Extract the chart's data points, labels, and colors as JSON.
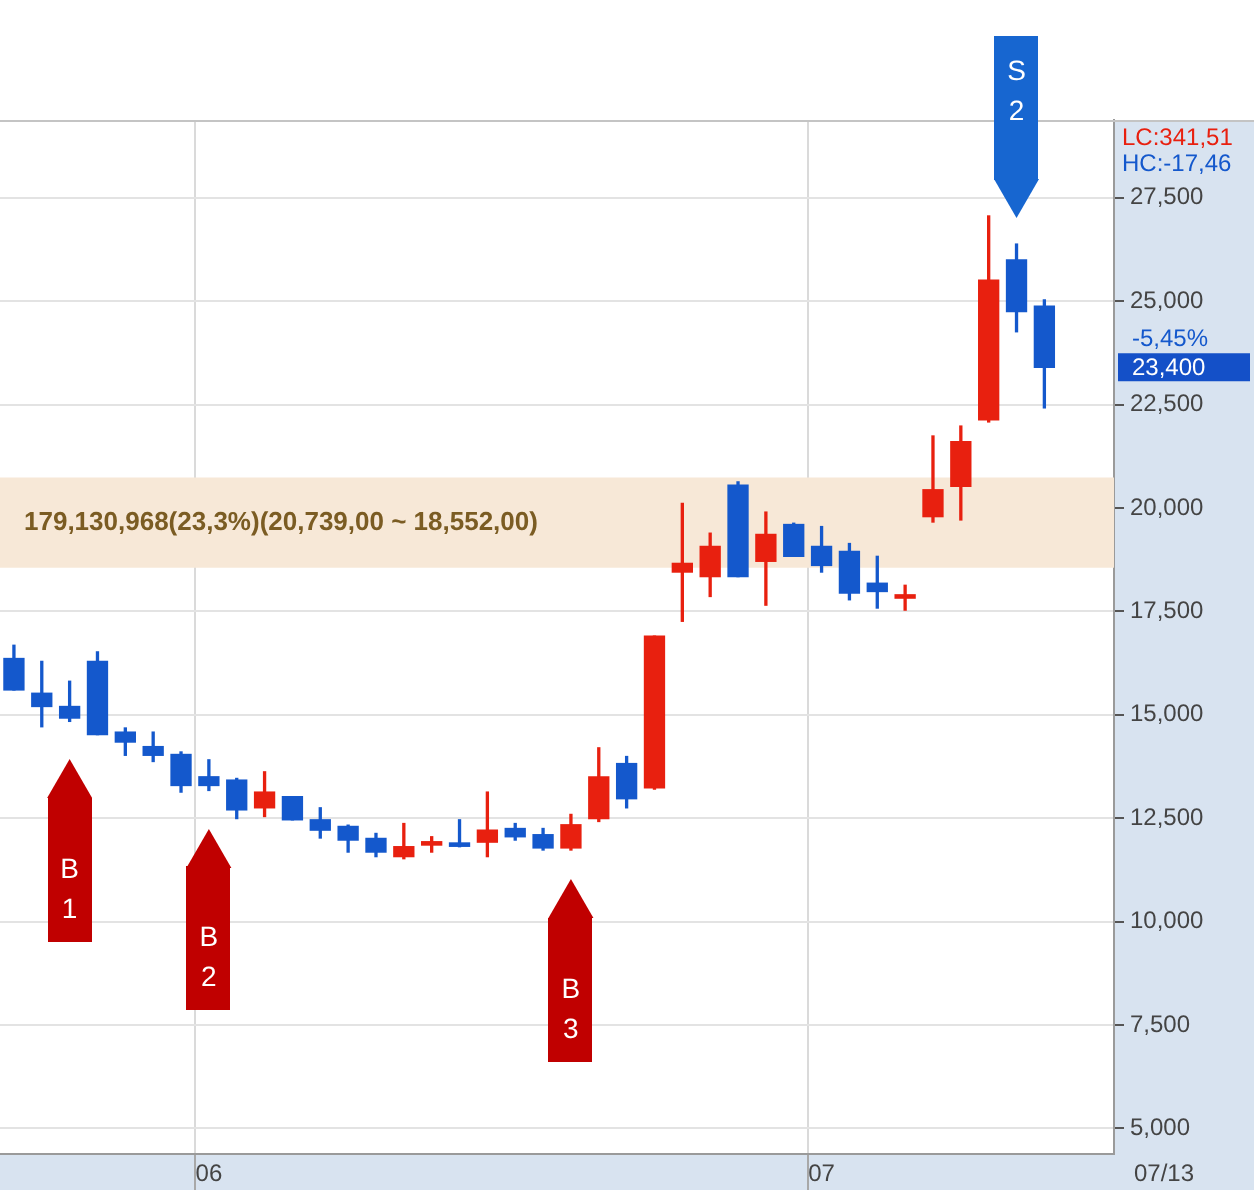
{
  "chart_data": {
    "type": "candlestick",
    "categories": [
      null,
      null,
      null,
      null,
      null,
      null,
      null,
      "06",
      null,
      null,
      null,
      null,
      null,
      null,
      null,
      null,
      null,
      null,
      null,
      null,
      null,
      null,
      null,
      null,
      null,
      null,
      null,
      null,
      null,
      "07",
      null,
      null,
      null,
      null,
      null,
      null,
      null,
      null
    ],
    "ohlc": [
      [
        16360,
        16680,
        15600,
        15600
      ],
      [
        15520,
        16290,
        14710,
        15200
      ],
      [
        15200,
        15810,
        14840,
        14920
      ],
      [
        16290,
        16520,
        14520,
        14520
      ],
      [
        14580,
        14680,
        14020,
        14340
      ],
      [
        14230,
        14580,
        13870,
        14020
      ],
      [
        14040,
        14100,
        13130,
        13290
      ],
      [
        13500,
        13910,
        13170,
        13290
      ],
      [
        13420,
        13460,
        12490,
        12700
      ],
      [
        12750,
        13620,
        12540,
        13130
      ],
      [
        13020,
        13020,
        12460,
        12460
      ],
      [
        12460,
        12750,
        12020,
        12210
      ],
      [
        12300,
        12330,
        11680,
        11970
      ],
      [
        12010,
        12130,
        11570,
        11680
      ],
      [
        11570,
        12370,
        11520,
        11810
      ],
      [
        11850,
        12050,
        11680,
        11930
      ],
      [
        11900,
        12460,
        11810,
        11820
      ],
      [
        11920,
        13130,
        11570,
        12210
      ],
      [
        12250,
        12370,
        11970,
        12050
      ],
      [
        12100,
        12250,
        11730,
        11780
      ],
      [
        11780,
        12590,
        11730,
        12340
      ],
      [
        12490,
        14200,
        12420,
        13500
      ],
      [
        13820,
        13990,
        12750,
        12970
      ],
      [
        13230,
        16900,
        13200,
        16900
      ],
      [
        18450,
        20110,
        17260,
        18660
      ],
      [
        18340,
        19390,
        17860,
        19070
      ],
      [
        20550,
        20630,
        18340,
        18340
      ],
      [
        18710,
        19900,
        17650,
        19360
      ],
      [
        19600,
        19630,
        18830,
        18830
      ],
      [
        19070,
        19550,
        18450,
        18610
      ],
      [
        18950,
        19140,
        17780,
        17940
      ],
      [
        18180,
        18830,
        17580,
        17980
      ],
      [
        17820,
        18130,
        17530,
        17900
      ],
      [
        19790,
        21740,
        19660,
        20440
      ],
      [
        20520,
        21980,
        19710,
        21600
      ],
      [
        22130,
        27060,
        22080,
        25510
      ],
      [
        26000,
        26380,
        24260,
        24750
      ],
      [
        24880,
        25030,
        22420,
        23400
      ]
    ],
    "colors": [
      "#1458cc",
      "#1458cc",
      "#1458cc",
      "#1458cc",
      "#1458cc",
      "#1458cc",
      "#1458cc",
      "#1458cc",
      "#1458cc",
      "#e8200f",
      "#1458cc",
      "#1458cc",
      "#1458cc",
      "#1458cc",
      "#e8200f",
      "#e8200f",
      "#1458cc",
      "#e8200f",
      "#1458cc",
      "#1458cc",
      "#e8200f",
      "#e8200f",
      "#1458cc",
      "#e8200f",
      "#e8200f",
      "#e8200f",
      "#1458cc",
      "#e8200f",
      "#1458cc",
      "#1458cc",
      "#1458cc",
      "#1458cc",
      "#e8200f",
      "#e8200f",
      "#e8200f",
      "#e8200f",
      "#1458cc",
      "#1458cc"
    ],
    "series": [
      {
        "type": "scatter",
        "color": "#c00000",
        "marker": "triangle",
        "values": [
          null,
          null,
          13300,
          null,
          null,
          null,
          null,
          11610,
          null,
          null,
          null,
          null,
          null,
          null,
          null,
          null,
          null,
          null,
          null,
          null,
          10400,
          null,
          null,
          null,
          null,
          null,
          null,
          null,
          null,
          null,
          null,
          null,
          null,
          null,
          null,
          null,
          null,
          null
        ],
        "value_labels": [
          null,
          null,
          "B\n1",
          null,
          null,
          null,
          null,
          "B\n2",
          null,
          null,
          null,
          null,
          null,
          null,
          null,
          null,
          null,
          null,
          null,
          null,
          "B\n3",
          null,
          null,
          null,
          null,
          null,
          null,
          null,
          null,
          null,
          null,
          null,
          null,
          null,
          null,
          null,
          null,
          null
        ]
      },
      {
        "type": "scatter",
        "color": "#1766d0",
        "marker": "triangle",
        "values": [
          null,
          null,
          null,
          null,
          null,
          null,
          null,
          null,
          null,
          null,
          null,
          null,
          null,
          null,
          null,
          null,
          null,
          null,
          null,
          null,
          null,
          null,
          null,
          null,
          null,
          null,
          null,
          null,
          null,
          null,
          null,
          null,
          null,
          null,
          null,
          null,
          27640,
          null
        ],
        "value_labels": [
          null,
          null,
          null,
          null,
          null,
          null,
          null,
          null,
          null,
          null,
          null,
          null,
          null,
          null,
          null,
          null,
          null,
          null,
          null,
          null,
          null,
          null,
          null,
          null,
          null,
          null,
          null,
          null,
          null,
          null,
          null,
          null,
          null,
          null,
          null,
          null,
          "S\n2",
          null
        ]
      }
    ],
    "ylim": [
      4380,
      29380
    ],
    "yticks": [
      {
        "value": 5000,
        "label": "5,000"
      },
      {
        "value": 7500,
        "label": "7,500"
      },
      {
        "value": 10000,
        "label": "10,000"
      },
      {
        "value": 12500,
        "label": "12,500"
      },
      {
        "value": 15000,
        "label": "15,000"
      },
      {
        "value": 17500,
        "label": "17,500"
      },
      {
        "value": 20000,
        "label": "20,000"
      },
      {
        "value": 22500,
        "label": "22,500"
      },
      {
        "value": 25000,
        "label": "25,000"
      },
      {
        "value": 27500,
        "label": "27,500"
      }
    ],
    "grid": true,
    "bands": [
      {
        "axis": "y",
        "from": 18552,
        "to": 20739,
        "label": "179,130,968(23,3%)(20,739,00 ~ 18,552,00)",
        "color": "#f7e8d7"
      }
    ],
    "annotations": [
      "LC:341,51",
      "HC:-17,46",
      "23,400",
      "-5,45%",
      "07/13"
    ]
  }
}
